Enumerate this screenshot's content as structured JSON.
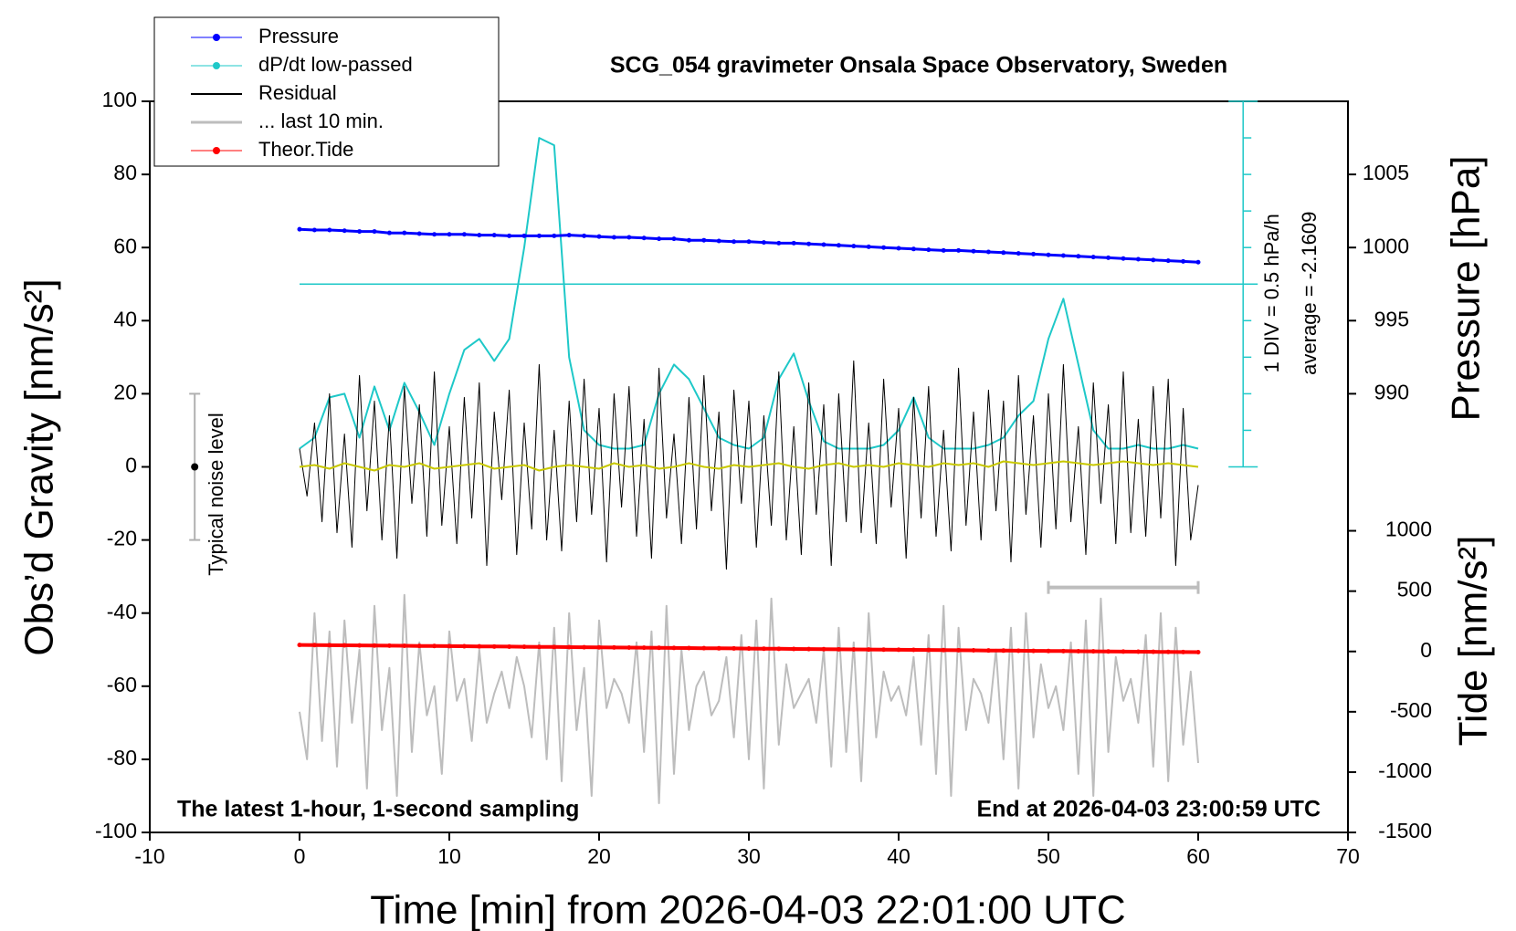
{
  "chart_data": {
    "type": "line",
    "title": "SCG_054 gravimeter Onsala Space Observatory, Sweden",
    "xlabel": "Time [min] from 2026-04-03 22:01:00 UTC",
    "ylabel": "Obs’d Gravity [nm/s²]",
    "y2label": "Pressure [hPa]",
    "y3label": "Tide [nm/s²]",
    "note_left": "The latest 1-hour, 1-second sampling",
    "note_right": "End at 2026-04-03 23:00:59 UTC",
    "xlim": [
      -10,
      70
    ],
    "xticks": [
      -10,
      0,
      10,
      20,
      30,
      40,
      50,
      60,
      70
    ],
    "ylim": [
      -100,
      100
    ],
    "yticks": [
      -100,
      -80,
      -60,
      -40,
      -20,
      0,
      20,
      40,
      60,
      80,
      100
    ],
    "y2lim": [
      960,
      1010
    ],
    "y2ticks": [
      990,
      995,
      1000,
      1005
    ],
    "y3lim": [
      -1500,
      4560
    ],
    "y3ticks": [
      -1500,
      -1000,
      -500,
      0,
      500,
      1000
    ],
    "dpdt_axis": {
      "label": "1 DIV = 0.5 hPa/h",
      "average_label": "average = -2.1609",
      "average_line": 50,
      "ticks": [
        0,
        10,
        20,
        30,
        40,
        50,
        60,
        70,
        80,
        90,
        100
      ]
    },
    "noise_bar": {
      "label": "Typical noise level",
      "value": 0,
      "error": 20
    },
    "window": {
      "xlim": [
        50,
        60
      ],
      "y": -33
    },
    "series": [
      {
        "name": "Pressure",
        "color": "#0000ff",
        "axis": "y2",
        "marker": true,
        "x": [
          0,
          1,
          2,
          3,
          4,
          5,
          6,
          7,
          8,
          9,
          10,
          11,
          12,
          13,
          14,
          15,
          16,
          17,
          18,
          19,
          20,
          21,
          22,
          23,
          24,
          25,
          26,
          27,
          28,
          29,
          30,
          31,
          32,
          33,
          34,
          35,
          36,
          37,
          38,
          39,
          40,
          41,
          42,
          43,
          44,
          45,
          46,
          47,
          48,
          49,
          50,
          51,
          52,
          53,
          54,
          55,
          56,
          57,
          58,
          59,
          60
        ],
        "values": [
          1001.25,
          1001.2,
          1001.2,
          1001.15,
          1001.1,
          1001.1,
          1001.0,
          1001.0,
          1000.95,
          1000.9,
          1000.9,
          1000.9,
          1000.85,
          1000.85,
          1000.8,
          1000.8,
          1000.8,
          1000.8,
          1000.85,
          1000.8,
          1000.75,
          1000.7,
          1000.7,
          1000.65,
          1000.6,
          1000.6,
          1000.5,
          1000.5,
          1000.45,
          1000.4,
          1000.4,
          1000.35,
          1000.3,
          1000.3,
          1000.25,
          1000.2,
          1000.15,
          1000.1,
          1000.05,
          1000.0,
          999.95,
          999.9,
          999.85,
          999.8,
          999.8,
          999.75,
          999.7,
          999.65,
          999.6,
          999.55,
          999.5,
          999.45,
          999.4,
          999.35,
          999.3,
          999.25,
          999.2,
          999.15,
          999.1,
          999.05,
          999.0
        ]
      },
      {
        "name": "dP/dt low-passed",
        "color": "#1ec8c8",
        "marker": true,
        "x": [
          0,
          1,
          2,
          3,
          4,
          5,
          6,
          7,
          8,
          9,
          10,
          11,
          12,
          13,
          14,
          15,
          16,
          17,
          18,
          19,
          20,
          21,
          22,
          23,
          24,
          25,
          26,
          27,
          28,
          29,
          30,
          31,
          32,
          33,
          34,
          35,
          36,
          37,
          38,
          39,
          40,
          41,
          42,
          43,
          44,
          45,
          46,
          47,
          48,
          49,
          50,
          51,
          52,
          53,
          54,
          55,
          56,
          57,
          58,
          59,
          60
        ],
        "values": [
          5,
          8,
          19,
          20,
          8,
          22,
          10,
          23,
          15,
          6,
          20,
          32,
          35,
          29,
          35,
          60,
          90,
          88,
          30,
          10,
          6,
          5,
          5,
          6,
          20,
          28,
          24,
          16,
          8,
          6,
          5,
          8,
          24,
          31,
          18,
          7,
          5,
          5,
          5,
          6,
          10,
          19,
          8,
          5,
          5,
          5,
          6,
          8,
          14,
          18,
          35,
          46,
          28,
          10,
          5,
          5,
          6,
          5,
          5,
          6,
          5
        ]
      },
      {
        "name": "Residual",
        "color": "#000000",
        "x": [
          0,
          0.5,
          1,
          1.5,
          2,
          2.5,
          3,
          3.5,
          4,
          4.5,
          5,
          5.5,
          6,
          6.5,
          7,
          7.5,
          8,
          8.5,
          9,
          9.5,
          10,
          10.5,
          11,
          11.5,
          12,
          12.5,
          13,
          13.5,
          14,
          14.5,
          15,
          15.5,
          16,
          16.5,
          17,
          17.5,
          18,
          18.5,
          19,
          19.5,
          20,
          20.5,
          21,
          21.5,
          22,
          22.5,
          23,
          23.5,
          24,
          24.5,
          25,
          25.5,
          26,
          26.5,
          27,
          27.5,
          28,
          28.5,
          29,
          29.5,
          30,
          30.5,
          31,
          31.5,
          32,
          32.5,
          33,
          33.5,
          34,
          34.5,
          35,
          35.5,
          36,
          36.5,
          37,
          37.5,
          38,
          38.5,
          39,
          39.5,
          40,
          40.5,
          41,
          41.5,
          42,
          42.5,
          43,
          43.5,
          44,
          44.5,
          45,
          45.5,
          46,
          46.5,
          47,
          47.5,
          48,
          48.5,
          49,
          49.5,
          50,
          50.5,
          51,
          51.5,
          52,
          52.5,
          53,
          53.5,
          54,
          54.5,
          55,
          55.5,
          56,
          56.5,
          57,
          57.5,
          58,
          58.5,
          59,
          59.5,
          60
        ],
        "values": [
          5,
          -8,
          12,
          -15,
          20,
          -18,
          9,
          -22,
          25,
          -12,
          18,
          -20,
          14,
          -25,
          22,
          -10,
          17,
          -19,
          26,
          -16,
          11,
          -21,
          19,
          -14,
          23,
          -27,
          15,
          -9,
          21,
          -24,
          12,
          -17,
          28,
          -20,
          10,
          -23,
          18,
          -15,
          24,
          -13,
          16,
          -26,
          20,
          -11,
          22,
          -19,
          13,
          -25,
          27,
          -14,
          9,
          -21,
          19,
          -17,
          25,
          -12,
          15,
          -28,
          21,
          -10,
          18,
          -22,
          14,
          -16,
          26,
          -20,
          11,
          -24,
          23,
          -13,
          17,
          -27,
          20,
          -15,
          29,
          -18,
          12,
          -21,
          24,
          -11,
          16,
          -25,
          19,
          -14,
          22,
          -19,
          10,
          -23,
          27,
          -16,
          15,
          -20,
          21,
          -12,
          18,
          -26,
          25,
          -13,
          14,
          -22,
          20,
          -17,
          28,
          -15,
          11,
          -24,
          23,
          -10,
          17,
          -21,
          26,
          -18,
          13,
          -19,
          22,
          -14,
          24,
          -27,
          16,
          -20,
          -5
        ]
      },
      {
        "name": "... last 10 min.",
        "color": "#bdbdbd",
        "x": [
          0,
          0.5,
          1,
          1.5,
          2,
          2.5,
          3,
          3.5,
          4,
          4.5,
          5,
          5.5,
          6,
          6.5,
          7,
          7.5,
          8,
          8.5,
          9,
          9.5,
          10,
          10.5,
          11,
          11.5,
          12,
          12.5,
          13,
          13.5,
          14,
          14.5,
          15,
          15.5,
          16,
          16.5,
          17,
          17.5,
          18,
          18.5,
          19,
          19.5,
          20,
          20.5,
          21,
          21.5,
          22,
          22.5,
          23,
          23.5,
          24,
          24.5,
          25,
          25.5,
          26,
          26.5,
          27,
          27.5,
          28,
          28.5,
          29,
          29.5,
          30,
          30.5,
          31,
          31.5,
          32,
          32.5,
          33,
          33.5,
          34,
          34.5,
          35,
          35.5,
          36,
          36.5,
          37,
          37.5,
          38,
          38.5,
          39,
          39.5,
          40,
          40.5,
          41,
          41.5,
          42,
          42.5,
          43,
          43.5,
          44,
          44.5,
          45,
          45.5,
          46,
          46.5,
          47,
          47.5,
          48,
          48.5,
          49,
          49.5,
          50,
          50.5,
          51,
          51.5,
          52,
          52.5,
          53,
          53.5,
          54,
          54.5,
          55,
          55.5,
          56,
          56.5,
          57,
          57.5,
          58,
          58.5,
          59,
          59.5,
          60
        ],
        "values": [
          -67,
          -80,
          -40,
          -75,
          -45,
          -82,
          -42,
          -70,
          -50,
          -88,
          -38,
          -72,
          -55,
          -90,
          -35,
          -78,
          -48,
          -68,
          -60,
          -84,
          -45,
          -64,
          -58,
          -75,
          -50,
          -70,
          -62,
          -56,
          -66,
          -52,
          -60,
          -74,
          -48,
          -80,
          -44,
          -86,
          -40,
          -72,
          -55,
          -90,
          -42,
          -66,
          -58,
          -62,
          -70,
          -48,
          -78,
          -45,
          -92,
          -38,
          -84,
          -50,
          -72,
          -60,
          -56,
          -68,
          -64,
          -52,
          -74,
          -46,
          -80,
          -42,
          -88,
          -36,
          -76,
          -54,
          -66,
          -62,
          -58,
          -70,
          -50,
          -82,
          -44,
          -78,
          -48,
          -86,
          -40,
          -74,
          -56,
          -64,
          -60,
          -68,
          -52,
          -76,
          -46,
          -84,
          -38,
          -90,
          -44,
          -72,
          -58,
          -62,
          -70,
          -50,
          -80,
          -44,
          -88,
          -40,
          -74,
          -54,
          -66,
          -60,
          -72,
          -48,
          -84,
          -42,
          -90,
          -36,
          -78,
          -52,
          -64,
          -58,
          -70,
          -46,
          -82,
          -40,
          -86,
          -44,
          -76,
          -56,
          -81
        ]
      },
      {
        "name": "Theor.Tide",
        "color": "#ff0000",
        "axis": "y3",
        "marker": true,
        "x": [
          0,
          1,
          2,
          3,
          4,
          5,
          6,
          7,
          8,
          9,
          10,
          11,
          12,
          13,
          14,
          15,
          16,
          17,
          18,
          19,
          20,
          21,
          22,
          23,
          24,
          25,
          26,
          27,
          28,
          29,
          30,
          31,
          32,
          33,
          34,
          35,
          36,
          37,
          38,
          39,
          40,
          41,
          42,
          43,
          44,
          45,
          46,
          47,
          48,
          49,
          50,
          51,
          52,
          53,
          54,
          55,
          56,
          57,
          58,
          59,
          60
        ],
        "values": [
          54,
          53,
          52,
          51,
          50,
          49,
          48,
          47,
          46,
          45,
          44,
          43,
          42,
          41,
          40,
          39,
          38,
          37,
          36,
          35,
          34,
          33,
          32,
          31,
          30,
          29,
          28,
          27,
          26,
          25,
          24,
          23,
          22,
          21,
          20,
          19,
          18,
          17,
          16,
          15,
          14,
          13,
          12,
          11,
          10,
          9,
          8,
          7,
          6,
          5,
          4,
          3,
          2,
          1,
          0,
          -1,
          -2,
          -3,
          -4,
          -5,
          -6
        ]
      },
      {
        "color": "#c8c800",
        "x": [
          0,
          1,
          2,
          3,
          4,
          5,
          6,
          7,
          8,
          9,
          10,
          11,
          12,
          13,
          14,
          15,
          16,
          17,
          18,
          19,
          20,
          21,
          22,
          23,
          24,
          25,
          26,
          27,
          28,
          29,
          30,
          31,
          32,
          33,
          34,
          35,
          36,
          37,
          38,
          39,
          40,
          41,
          42,
          43,
          44,
          45,
          46,
          47,
          48,
          49,
          50,
          51,
          52,
          53,
          54,
          55,
          56,
          57,
          58,
          59,
          60
        ],
        "values": [
          0,
          0.5,
          -0.5,
          1,
          0,
          -1,
          0.5,
          0,
          1,
          -0.5,
          0,
          0.5,
          1,
          -0.5,
          0,
          0.5,
          -1,
          0,
          0.5,
          0,
          -0.5,
          1,
          0,
          0.5,
          -0.5,
          0,
          1,
          0,
          -0.5,
          0.5,
          0,
          0.5,
          1,
          0,
          -0.5,
          0.5,
          1,
          0,
          0.5,
          0,
          1,
          0.5,
          0,
          1,
          0.5,
          1,
          0,
          1.5,
          1,
          0.5,
          1,
          1.5,
          1,
          0.5,
          1,
          1.5,
          1,
          0.5,
          1,
          0.5,
          0
        ]
      }
    ]
  }
}
